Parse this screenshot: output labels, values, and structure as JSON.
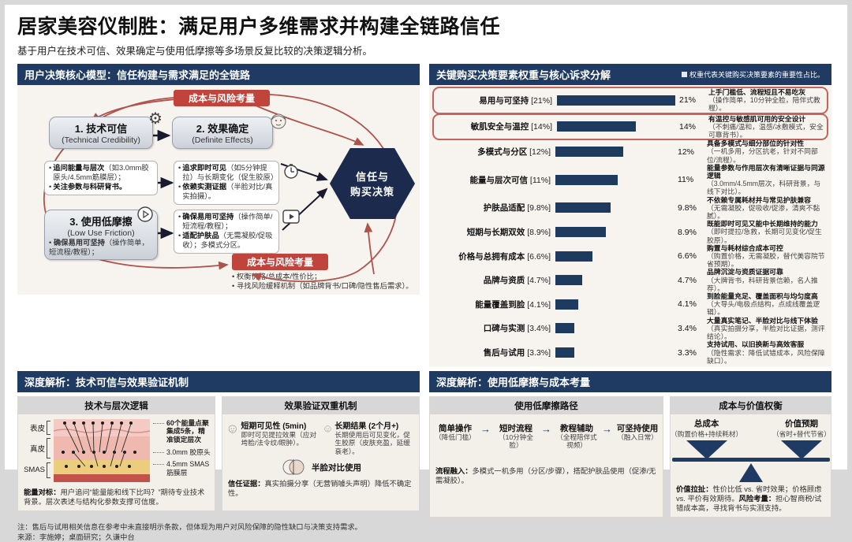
{
  "header": {
    "title": "居家美容仪制胜：满足用户多维需求并构建全链路信任",
    "subtitle": "基于用户在技术可信、效果确定与使用低摩擦等多场景反复比较的决策逻辑分析。"
  },
  "colors": {
    "navy": "#1f3a63",
    "red_badge": "#c0443c",
    "red_line": "#b0524c",
    "bar": "#1e3a5f",
    "panel_bg": "#f7f4ef"
  },
  "model": {
    "title": "用户决策核心模型：信任构建与需求满足的全链路",
    "badge_top": "成本与风险考量",
    "badge_bottom": "成本与风险考量",
    "node1": {
      "title": "1. 技术可信",
      "en": "(Technical Credibility)"
    },
    "node2": {
      "title": "2. 效果确定",
      "en": "(Definite Effects)"
    },
    "node3": {
      "title": "3. 使用低摩擦",
      "en": "(Low Use Friction)",
      "bullet_b": "确保易用可坚持",
      "bullet_r": "（操作简单，短流程/教程）；"
    },
    "node1_bullets": [
      {
        "b": "追问能量与层次",
        "r": "（如3.0mm胶原头/4.5mm筋膜层）；"
      },
      {
        "b": "关注参数与科研背书。",
        "r": ""
      }
    ],
    "node2_bullets": [
      {
        "b": "追求即时可见",
        "r": "（如5分钟提拉）与长期变化（促生胶原）"
      },
      {
        "b": "依赖实测证据",
        "r": "（半脸对比/真实拍摄）。"
      }
    ],
    "node3_bullets": [
      {
        "b": "确保易用可坚持",
        "r": "（操作简单/短流程/教程）；"
      },
      {
        "b": "适配护肤品",
        "r": "（无需凝胶/促吸收）；多模式分区。"
      }
    ],
    "bottom_bullets": [
      {
        "b": "",
        "r": "权衡价格/总成本/性价比；"
      },
      {
        "b": "",
        "r": "寻找风险缓释机制（如品牌背书/口碑/隐性售后需求）。"
      }
    ],
    "hexagon_line1": "信任与",
    "hexagon_line2": "购买决策"
  },
  "weights": {
    "title": "关键购买决策要素权重与核心诉求分解",
    "note": "权重代表关键购买决策要素的重要性占比。",
    "rows": [
      {
        "label": "易用与可坚持",
        "weight": "[21%]",
        "pct": "21%",
        "headline": "上手门槛低、流程短且不易吃灰",
        "detail": "（操作简单，10分钟全脸，陪伴式教程）。"
      },
      {
        "label": "敏肌安全与温控",
        "weight": "[14%]",
        "pct": "14%",
        "headline": "有温控与敏感肌可用的安全设计",
        "detail": "（不刺痛/温和，温感/冰敷模式，安全可靠背书）。"
      },
      {
        "label": "多模式与分区",
        "weight": "[12%]",
        "pct": "12%",
        "headline": "具备多模式与细分部位的针对性",
        "detail": "（一机多用，分区抗老，针对不同部位/流程）。"
      },
      {
        "label": "能量与层次可信",
        "weight": "[11%]",
        "pct": "11%",
        "headline": "能量参数与作用层次有清晰证据与同源逻辑",
        "detail": "（3.0mm/4.5mm层次，科研背景，与线下对比）。"
      },
      {
        "label": "护肤品适配",
        "weight": "[9.8%]",
        "pct": "9.8%",
        "headline": "不依赖专属耗材并与常见护肤兼容",
        "detail": "（无需凝胶，促吸收/促渗，清爽不黏腻）。"
      },
      {
        "label": "短期与长期双效",
        "weight": "[8.9%]",
        "pct": "8.9%",
        "headline": "既能即时可见又能中长期维持的能力",
        "detail": "（即时提拉/急救，长期可见变化/促生胶原）。"
      },
      {
        "label": "价格与总拥有成本",
        "weight": "[6.6%]",
        "pct": "6.6%",
        "headline": "购置与耗材综合成本可控",
        "detail": "（购置价格，无需凝胶，替代美容院节省预期）。"
      },
      {
        "label": "品牌与资质",
        "weight": "[4.7%]",
        "pct": "4.7%",
        "headline": "品牌沉淀与资质证据可靠",
        "detail": "（大牌背书，科研背景信赖，名人推荐）。"
      },
      {
        "label": "能量覆盖到脸",
        "weight": "[4.1%]",
        "pct": "4.1%",
        "headline": "到脸能量充足、覆盖面积与均匀度高",
        "detail": "（大导头/电极点结构，点成线覆盖逻辑）。"
      },
      {
        "label": "口碑与实测",
        "weight": "[3.4%]",
        "pct": "3.4%",
        "headline": "大量真实笔记、半脸对比与线下体验",
        "detail": "（真实拍摄分享，半脸对比证据，测评结论）。"
      },
      {
        "label": "售后与试用",
        "weight": "[3.3%]",
        "pct": "3.3%",
        "headline": "支持试用、以旧换新与高效客服",
        "detail": "（隐性需求：降低试错成本，风险保障缺口）。"
      }
    ]
  },
  "chart_data": {
    "type": "bar",
    "orientation": "horizontal",
    "title": "关键购买决策要素权重与核心诉求分解",
    "categories": [
      "易用与可坚持",
      "敏肌安全与温控",
      "多模式与分区",
      "能量与层次可信",
      "护肤品适配",
      "短期与长期双效",
      "价格与总拥有成本",
      "品牌与资质",
      "能量覆盖到脸",
      "口碑与实测",
      "售后与试用"
    ],
    "values": [
      21,
      14,
      12,
      11,
      9.8,
      8.9,
      6.6,
      4.7,
      4.1,
      3.4,
      3.3
    ],
    "unit": "%",
    "xlim": [
      0,
      21
    ],
    "bar_color": "#1e3a5f",
    "grid": false,
    "legend": "none"
  },
  "deep_left": {
    "title": "深度解析：技术可信与效果验证机制",
    "tech_box": {
      "header": "技术与层次逻辑",
      "layers": [
        "表皮",
        "真皮",
        "SMAS"
      ],
      "ann1": "60个能量点聚集成5条，精准锁定层次",
      "ann2": "3.0mm 胶原头",
      "ann3": "4.5mm SMAS筋膜层",
      "note_b": "能量对标：",
      "note_r": "用户追问“能量能和线下比吗？”期待专业技术背景。层次表述与结构化参数支撑可信度。"
    },
    "verify_box": {
      "header": "效果验证双重机制",
      "short_title": "短期可见性 (5min)",
      "short_desc": "即时可见提拉效果（应对垮脸/法令纹/眼肿）。",
      "long_title": "长期结果 (2个月+)",
      "long_desc": "长期使用后可见变化，促生胶原（皮肤充盈，延缓衰老）。",
      "half_label": "半脸对比使用",
      "note_b": "信任证据：",
      "note_r": "真实拍摄分享（无营销噱头声明）降低不确定性。"
    }
  },
  "deep_right": {
    "title": "深度解析：使用低摩擦与成本考量",
    "friction_box": {
      "header": "使用低摩擦路径",
      "steps": [
        {
          "t": "简单操作",
          "c": "（降低门槛）"
        },
        {
          "t": "短时流程",
          "c": "（10分钟全脸）"
        },
        {
          "t": "教程辅助",
          "c": "（全程陪伴式视频）"
        },
        {
          "t": "可坚持使用",
          "c": "（融入日常）"
        }
      ],
      "arrow": "→",
      "note_b": "流程融入：",
      "note_r": "多模式一机多用（分区/步骤），搭配护肤品使用（促渗/无需凝胶）。"
    },
    "cost_box": {
      "header": "成本与价值权衡",
      "left_t": "总成本",
      "left_c": "（购置价格+持续耗材）",
      "right_t": "价值预期",
      "right_c": "（省时+替代节省）",
      "note1_b": "价值拉扯：",
      "note1_r": "性价比低 vs. 省时效果；价格顾虑 vs. 平价有效期待。",
      "note2_b": "风险考量：",
      "note2_r": "担心智商税/试错成本高，寻找背书与实测支持。"
    }
  },
  "footer": {
    "note": "注：售后与试用相关信息在参考中未直接明示条款，但体现为用户对风险保障的隐性缺口与决策支持需求。",
    "source": "来源：李施婷；桌面研究；久谦中台"
  }
}
